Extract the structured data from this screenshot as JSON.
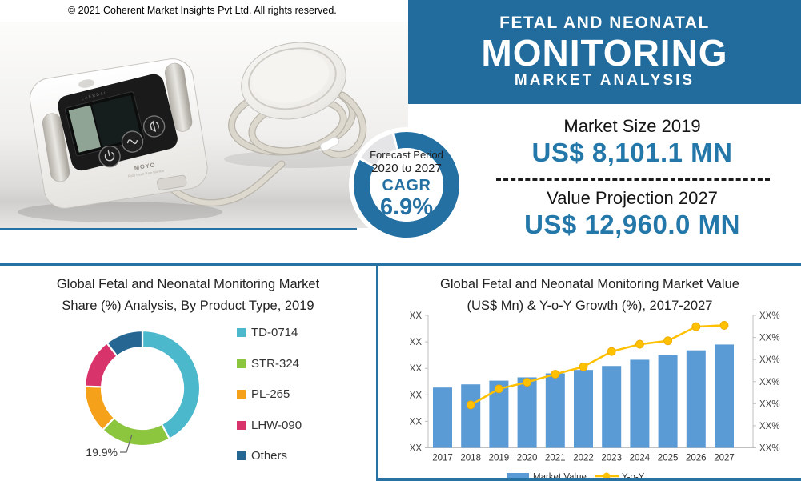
{
  "copyright": "© 2021 Coherent Market Insights Pvt Ltd. All rights reserved.",
  "header": {
    "title_line1": "FETAL AND NEONATAL",
    "title_line2": "MONITORING",
    "title_line3": "MARKET ANALYSIS"
  },
  "photo": {
    "device_brand": "LAERDAL",
    "device_label": "MOYO",
    "device_sublabel": "Fetal Heart Rate Monitor"
  },
  "forecast_badge": {
    "line1": "Forecast Period",
    "line2": "2020 to 2027",
    "line3": "CAGR",
    "line4": "6.9%"
  },
  "market_stats": {
    "size_label": "Market Size 2019",
    "size_value": "US$ 8,101.1 MN",
    "projection_label": "Value Projection 2027",
    "projection_value": "US$ 12,960.0 MN"
  },
  "panels": {
    "left": {
      "title_line1": "Global Fetal and Neonatal Monitoring Market",
      "title_line2": "Share (%) Analysis, By Product Type, 2019"
    },
    "right": {
      "title_line1": "Global Fetal and Neonatal Monitoring Market Value",
      "title_line2": "(US$ Mn) & Y-o-Y Growth (%), 2017-2027"
    }
  },
  "chart_data": [
    {
      "type": "pie",
      "donut": true,
      "title": "Global Fetal and Neonatal Monitoring Market Share (%) Analysis, By Product Type, 2019",
      "legend_position": "right",
      "slices": [
        {
          "label": "TD-0714",
          "value": 42.2,
          "color": "#4CB8CC",
          "value_is_estimated": true
        },
        {
          "label": "STR-324",
          "value": 19.9,
          "color": "#8CC63F",
          "value_is_estimated": false
        },
        {
          "label": "PL-265",
          "value": 13.4,
          "color": "#F5A11A",
          "value_is_estimated": true
        },
        {
          "label": "LHW-090",
          "value": 13.9,
          "color": "#D8336B",
          "value_is_estimated": true
        },
        {
          "label": "Others",
          "value": 10.6,
          "color": "#256692",
          "value_is_estimated": true
        }
      ],
      "annotation": {
        "text": "19.9%",
        "slice_index": 1
      }
    },
    {
      "type": "bar",
      "subtype": "bar-line-combo",
      "title": "Global Fetal and Neonatal Monitoring Market Value (US$ Mn) & Y-o-Y Growth (%), 2017-2027",
      "categories": [
        "2017",
        "2018",
        "2019",
        "2020",
        "2021",
        "2022",
        "2023",
        "2024",
        "2025",
        "2026",
        "2027"
      ],
      "series": [
        {
          "name": "Market Value",
          "type": "bar",
          "color": "#5B9BD5",
          "values": [
            45.5,
            47.9,
            50.7,
            53.2,
            56.2,
            58.8,
            61.8,
            66.5,
            70.0,
            73.6,
            78.0
          ]
        },
        {
          "name": "Y-o-Y",
          "type": "line",
          "color": "#FFC000",
          "values": [
            null,
            32.4,
            44.5,
            49.5,
            55.6,
            61.2,
            72.7,
            78.2,
            80.8,
            91.5,
            92.5
          ]
        }
      ],
      "values_unit": "relative percent of axis height (numeric axis labels are masked as XX / XX% in source)",
      "y_axis_left": {
        "tick_labels": [
          "XX",
          "XX",
          "XX",
          "XX",
          "XX",
          "XX"
        ]
      },
      "y_axis_right": {
        "tick_labels": [
          "XX%",
          "XX%",
          "XX%",
          "XX%",
          "XX%",
          "XX%",
          "XX%"
        ]
      },
      "ylim": [
        0,
        100
      ],
      "grid": false,
      "legend_position": "bottom"
    }
  ],
  "colors": {
    "primary_blue": "#216C9D",
    "divider_blue": "#2673A3",
    "accent_value_blue": "#2478A9",
    "ring_blue": "#2470A2",
    "ring_light_segment": "#E5E5E7",
    "bar_blue": "#5B9BD5",
    "line_gold": "#FFC000",
    "axis_gray": "#BFBFBF",
    "tick_text": "#404040"
  }
}
